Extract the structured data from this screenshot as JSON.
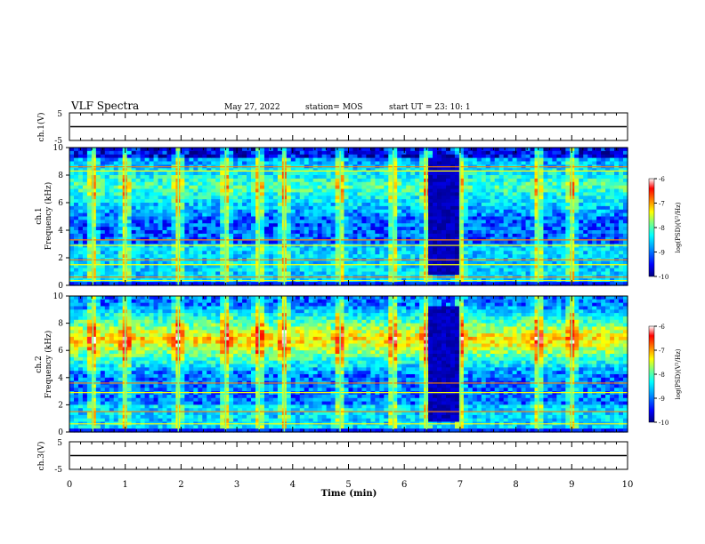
{
  "header": {
    "title": "VLF Spectra",
    "date": "May 27, 2022",
    "station": "station= MOS",
    "start_ut": "start  UT  =   23: 10: 1"
  },
  "chart_data": [
    {
      "type": "line",
      "panel": "ch1-waveform",
      "ylabel": "ch.1(V)",
      "ylim": [
        -5,
        5
      ],
      "yticks": [
        "5",
        "-5"
      ],
      "x": [
        0,
        10
      ],
      "y": [
        0,
        0
      ]
    },
    {
      "type": "heatmap",
      "panel": "ch1-spectrogram",
      "ylabel": "ch.1\nFrequency (kHz)",
      "ylabel_lines": [
        "ch.1",
        "Frequency (kHz)"
      ],
      "ylim": [
        0,
        10
      ],
      "yticks": [
        "0",
        "2",
        "4",
        "6",
        "8",
        "10"
      ],
      "colorbar": {
        "label": "log(PSD)(V²/Hz)",
        "range": [
          -10,
          -6
        ],
        "ticks": [
          "-6",
          "-7",
          "-8",
          "-9",
          "-10"
        ]
      },
      "features": {
        "tone_lines_khz": [
          0.35,
          0.6,
          1.5,
          1.85,
          2.9,
          3.3,
          8.3,
          8.6
        ],
        "broadband_events_min": [
          0.42,
          1.0,
          1.95,
          2.8,
          3.4,
          3.85,
          4.85,
          5.8,
          6.4,
          7.0,
          8.4,
          9.0
        ],
        "quiet_interval_min": [
          6.45,
          6.95
        ]
      }
    },
    {
      "type": "heatmap",
      "panel": "ch2-spectrogram",
      "ylabel": "ch.2\nFrequency (kHz)",
      "ylabel_lines": [
        "ch.2",
        "Frequency (kHz)"
      ],
      "ylim": [
        0,
        10
      ],
      "yticks": [
        "0",
        "2",
        "4",
        "6",
        "8",
        "10"
      ],
      "colorbar": {
        "label": "log(PSD)(V²/Hz)",
        "range": [
          -10,
          -6
        ],
        "ticks": [
          "-6",
          "-7",
          "-8",
          "-9",
          "-10"
        ]
      },
      "features": {
        "tone_lines_khz": [
          0.6,
          1.5,
          2.9,
          3.6
        ],
        "broadband_events_min": [
          0.42,
          1.0,
          1.95,
          2.8,
          3.4,
          3.85,
          4.85,
          5.8,
          6.4,
          7.0,
          8.4,
          9.0
        ],
        "quiet_interval_min": [
          6.45,
          6.95
        ]
      }
    },
    {
      "type": "line",
      "panel": "ch3-waveform",
      "ylabel": "ch.3(V)",
      "ylim": [
        -5,
        5
      ],
      "yticks": [
        "5",
        "-5"
      ],
      "x": [
        0,
        10
      ],
      "y": [
        0,
        0
      ]
    }
  ],
  "x_axis": {
    "label": "Time  (min)",
    "range": [
      0,
      10
    ],
    "ticks": [
      "0",
      "1",
      "2",
      "3",
      "4",
      "5",
      "6",
      "7",
      "8",
      "9",
      "10"
    ]
  },
  "colors": {
    "colormap": [
      "#00007f",
      "#0000ff",
      "#00a0ff",
      "#00ffff",
      "#7fff7f",
      "#ffff00",
      "#ff8000",
      "#ff0000",
      "#ffffff"
    ],
    "background_noise": "#000000"
  }
}
